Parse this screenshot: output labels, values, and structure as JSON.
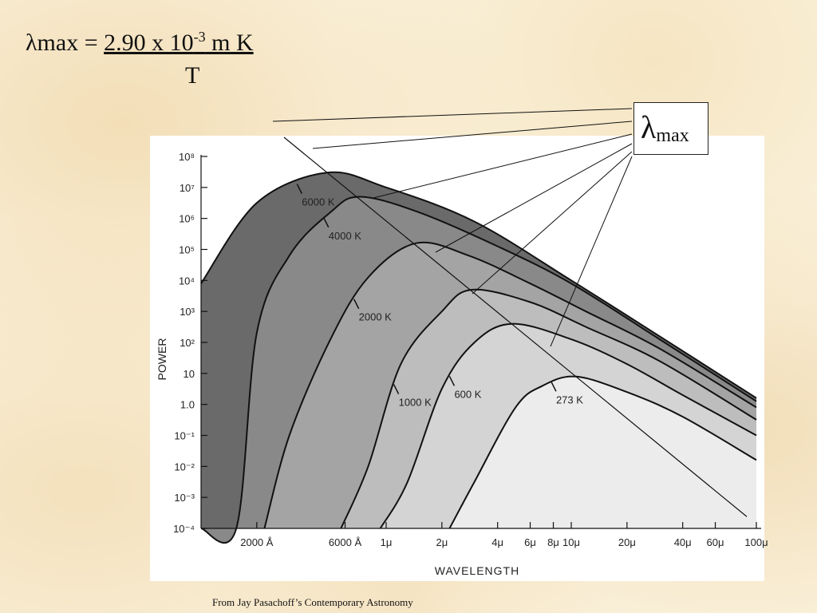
{
  "formula": {
    "lhs": "λmax = ",
    "numerator": "2.90 x 10",
    "exponent": "-3",
    "unit": " m K",
    "denominator": "T"
  },
  "lambda_box": {
    "symbol": "λ",
    "subscript": "max"
  },
  "credit": "From Jay Pasachoff’s Contemporary Astronomy",
  "colors": {
    "c6000": "#6a6a6a",
    "c4000": "#898989",
    "c2000": "#a4a4a4",
    "c1000": "#bdbdbd",
    "c600": "#d4d4d4",
    "c273": "#ececec"
  },
  "chart_data": {
    "type": "area",
    "xlabel": "WAVELENGTH",
    "ylabel": "POWER",
    "xscale": "log",
    "yscale": "log",
    "xlim_m": [
      1e-07,
      0.0001
    ],
    "ylim": [
      0.0001,
      100000000
    ],
    "grid": false,
    "legend": "none",
    "x_ticks": [
      {
        "value_m": 2e-07,
        "label": "2000 Å"
      },
      {
        "value_m": 6e-07,
        "label": "6000 Å"
      },
      {
        "value_m": 1e-06,
        "label": "1μ"
      },
      {
        "value_m": 2e-06,
        "label": "2μ"
      },
      {
        "value_m": 4e-06,
        "label": "4μ"
      },
      {
        "value_m": 6e-06,
        "label": "6μ"
      },
      {
        "value_m": 8e-06,
        "label": "8μ"
      },
      {
        "value_m": 1e-05,
        "label": "10μ"
      },
      {
        "value_m": 2e-05,
        "label": "20μ"
      },
      {
        "value_m": 4e-05,
        "label": "40μ"
      },
      {
        "value_m": 6e-05,
        "label": "60μ"
      },
      {
        "value_m": 0.0001,
        "label": "100μ"
      }
    ],
    "y_ticks": [
      {
        "value": 100000000,
        "label": "10⁸"
      },
      {
        "value": 10000000,
        "label": "10⁷"
      },
      {
        "value": 1000000,
        "label": "10⁶"
      },
      {
        "value": 100000,
        "label": "10⁵"
      },
      {
        "value": 10000,
        "label": "10⁴"
      },
      {
        "value": 1000,
        "label": "10³"
      },
      {
        "value": 100,
        "label": "10²"
      },
      {
        "value": 10,
        "label": "10"
      },
      {
        "value": 1,
        "label": "1.0"
      },
      {
        "value": 0.1,
        "label": "10⁻¹"
      },
      {
        "value": 0.01,
        "label": "10⁻²"
      },
      {
        "value": 0.001,
        "label": "10⁻³"
      },
      {
        "value": 0.0001,
        "label": "10⁻⁴"
      }
    ],
    "series": [
      {
        "name": "6000 K",
        "label": "6000 K",
        "temperature_K": 6000,
        "peak_power": 30000000,
        "points": [
          [
            1e-07,
            7943
          ],
          [
            2e-07,
            3162278
          ],
          [
            4.8e-07,
            30000000
          ],
          [
            1e-06,
            10000000
          ],
          [
            3e-06,
            794328
          ],
          [
            1e-05,
            10000
          ],
          [
            3e-05,
            158
          ],
          [
            0.0001,
            1.6
          ]
        ],
        "label_at_m": 3.3e-07
      },
      {
        "name": "4000 K",
        "label": "4000 K",
        "temperature_K": 4000,
        "peak_power": 5011872,
        "points": [
          [
            1e-07,
            0.0001
          ],
          [
            1.55e-07,
            0.0001
          ],
          [
            2e-07,
            200
          ],
          [
            3e-07,
            63096
          ],
          [
            5e-07,
            1584893
          ],
          [
            7.2e-07,
            5011872
          ],
          [
            1.5e-06,
            1584893
          ],
          [
            4e-06,
            125893
          ],
          [
            1e-05,
            7943
          ],
          [
            3e-05,
            126
          ],
          [
            0.0001,
            1.26
          ]
        ],
        "label_at_m": 4.6e-07
      },
      {
        "name": "2000 K",
        "label": "2000 K",
        "temperature_K": 2000,
        "peak_power": 158489,
        "points": [
          [
            2.2e-07,
            0.0001
          ],
          [
            3e-07,
            0.1
          ],
          [
            5e-07,
            126
          ],
          [
            8e-07,
            12589
          ],
          [
            1.45e-06,
            158489
          ],
          [
            2.8e-06,
            63096
          ],
          [
            6e-06,
            7943
          ],
          [
            1.2e-05,
            1000
          ],
          [
            3e-05,
            63
          ],
          [
            0.0001,
            0.8
          ]
        ],
        "label_at_m": 6.7e-07
      },
      {
        "name": "1000 K",
        "label": "1000 K",
        "temperature_K": 1000,
        "peak_power": 5012,
        "points": [
          [
            5.7e-07,
            0.0001
          ],
          [
            8e-07,
            0.01
          ],
          [
            1.2e-06,
            20
          ],
          [
            2e-06,
            1000
          ],
          [
            2.9e-06,
            5012
          ],
          [
            6e-06,
            1995
          ],
          [
            1.2e-05,
            316
          ],
          [
            3e-05,
            25
          ],
          [
            0.0001,
            0.32
          ]
        ],
        "label_at_m": 1.1e-06
      },
      {
        "name": "600 K",
        "label": "600 K",
        "temperature_K": 600,
        "peak_power": 398,
        "points": [
          [
            9.3e-07,
            0.0001
          ],
          [
            1.3e-06,
            0.003
          ],
          [
            2e-06,
            3.2
          ],
          [
            3e-06,
            100
          ],
          [
            4.8e-06,
            398
          ],
          [
            1e-05,
            126
          ],
          [
            2e-05,
            20
          ],
          [
            4e-05,
            2
          ],
          [
            0.0001,
            0.1
          ]
        ],
        "label_at_m": 2.2e-06
      },
      {
        "name": "273 K",
        "label": "273 K",
        "temperature_K": 273,
        "peak_power": 7.9,
        "points": [
          [
            2.2e-06,
            0.0001
          ],
          [
            3e-06,
            0.0032
          ],
          [
            5e-06,
            0.8
          ],
          [
            7e-06,
            4
          ],
          [
            1.06e-05,
            7.9
          ],
          [
            2e-05,
            2.5
          ],
          [
            4e-05,
            0.4
          ],
          [
            0.0001,
            0.016
          ]
        ],
        "label_at_m": 7.8e-06
      }
    ]
  }
}
